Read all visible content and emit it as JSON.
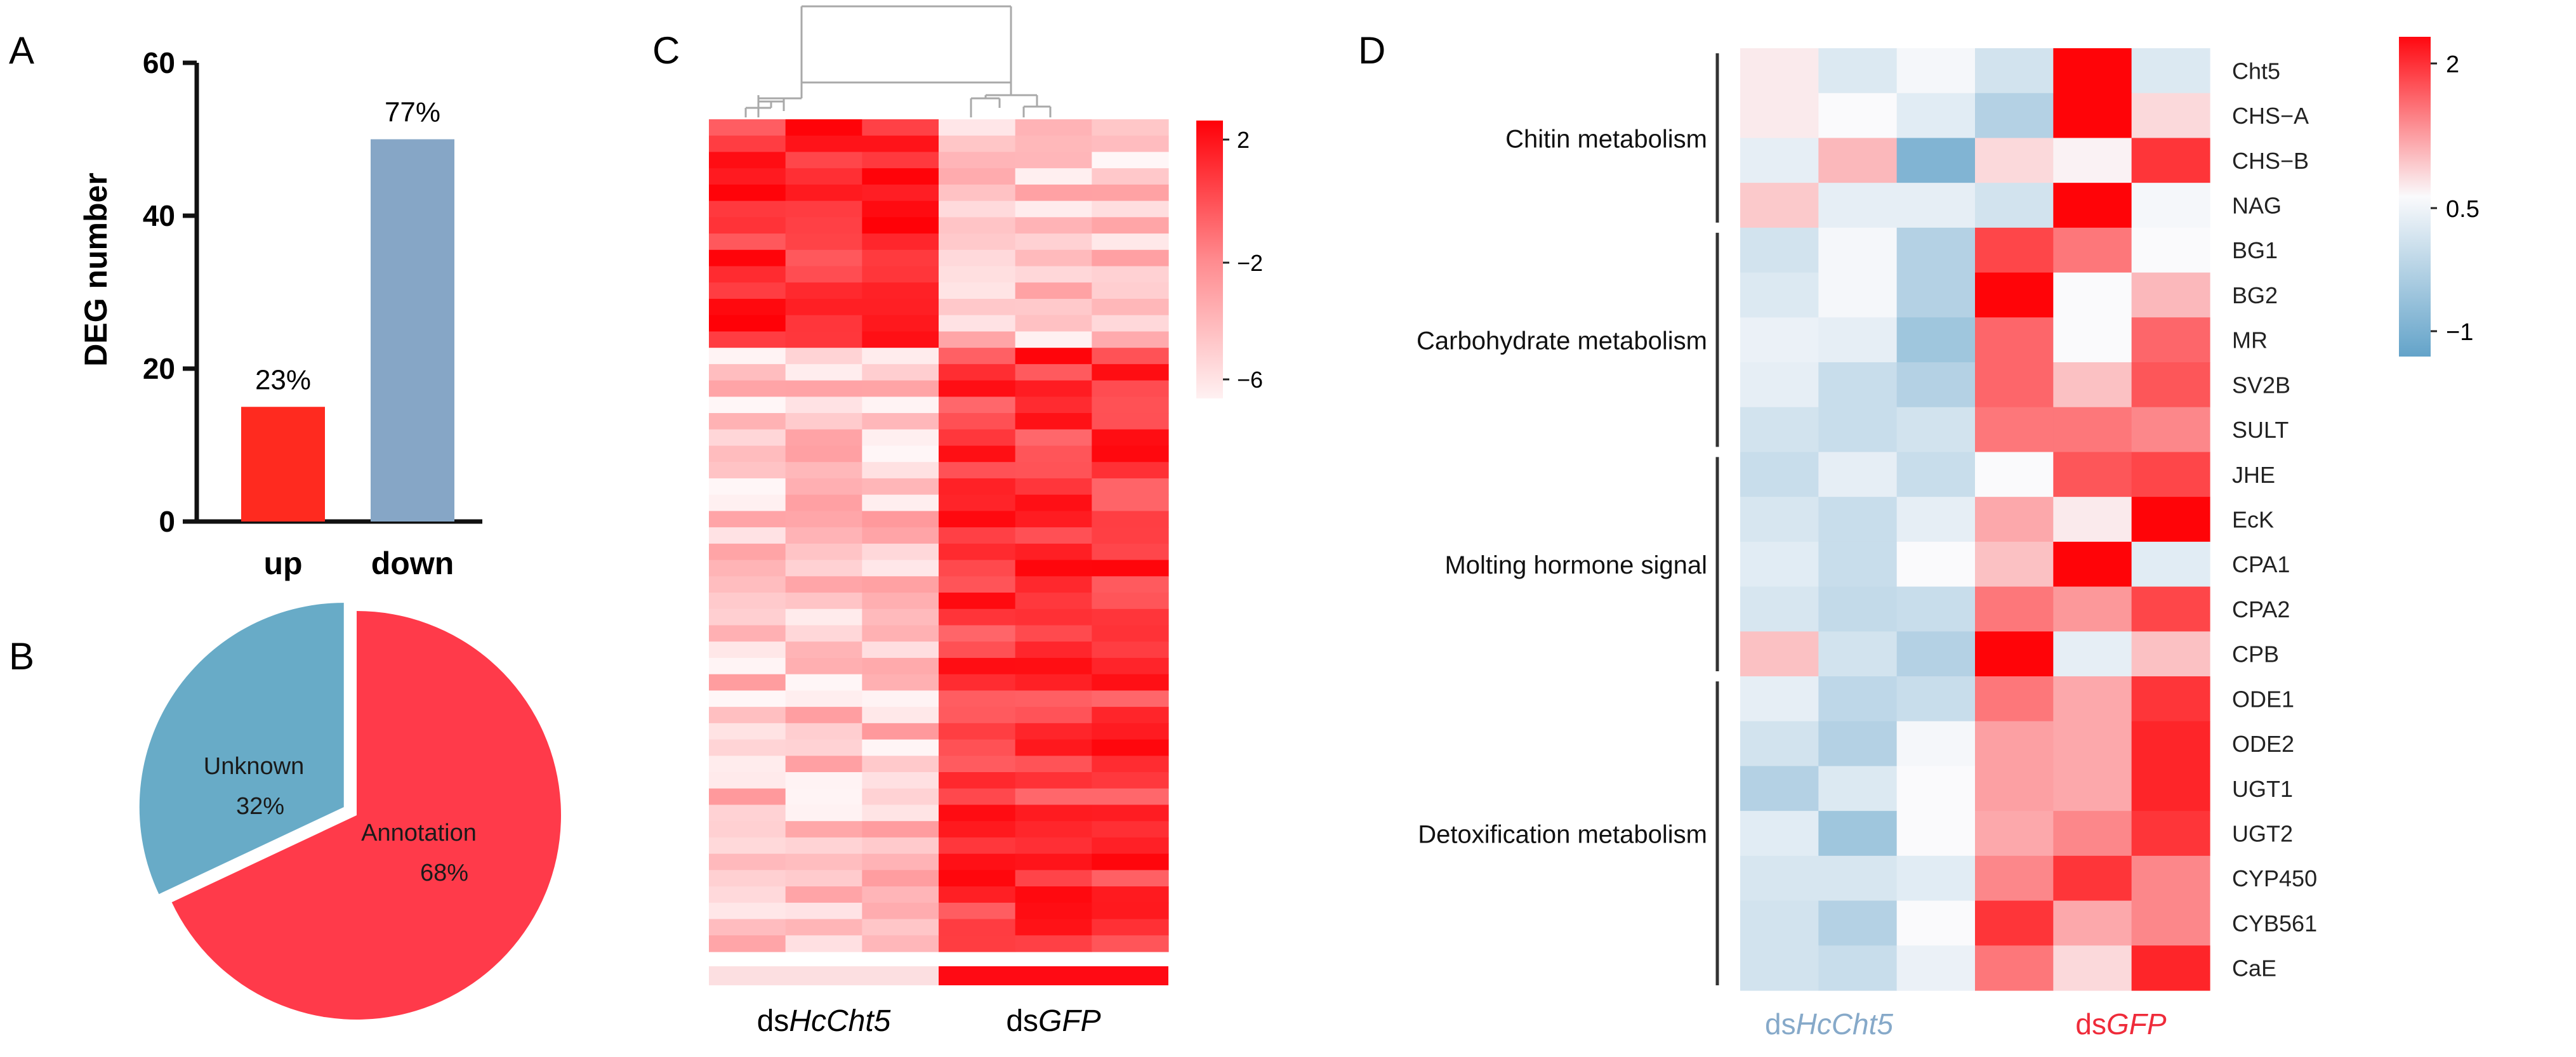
{
  "panels": [
    {
      "letter": "A"
    },
    {
      "letter": "B"
    },
    {
      "letter": "C"
    },
    {
      "letter": "D"
    }
  ],
  "chart_data": [
    {
      "id": "A",
      "type": "bar",
      "categories": [
        "up",
        "down"
      ],
      "values": [
        15,
        50
      ],
      "value_labels": [
        "23%",
        "77%"
      ],
      "colors": [
        "#ff2a1f",
        "#86a6c6"
      ],
      "xlabel": "",
      "ylabel": "DEG number",
      "ylim": [
        0,
        60
      ],
      "yticks": [
        0,
        20,
        40,
        60
      ]
    },
    {
      "id": "B",
      "type": "pie",
      "slices": [
        {
          "label": "Annotation",
          "pct_label": "68%",
          "value": 68,
          "color": "#ff3a4a"
        },
        {
          "label": "Unknown",
          "pct_label": "32%",
          "value": 32,
          "color": "#68abc7"
        }
      ]
    },
    {
      "id": "C",
      "type": "heatmap",
      "group_labels": [
        {
          "prefix": "ds",
          "name": "HcCht5",
          "bar_color": "#fcdfe1"
        },
        {
          "prefix": "ds",
          "name": "GFP",
          "bar_color": "#ff0a14"
        }
      ],
      "colorbar": {
        "ticks": [
          "2",
          "−2",
          "−6"
        ],
        "range": [
          -6,
          2
        ]
      },
      "n_rows": 51,
      "n_cols": 6
    },
    {
      "id": "D",
      "type": "heatmap",
      "genes": [
        "Cht5",
        "CHS−A",
        "CHS−B",
        "NAG",
        "BG1",
        "BG2",
        "MR",
        "SV2B",
        "SULT",
        "JHE",
        "EcK",
        "CPA1",
        "CPA2",
        "CPB",
        "ODE1",
        "ODE2",
        "UGT1",
        "UGT2",
        "CYP450",
        "CYB561",
        "CaE"
      ],
      "groups": [
        {
          "label": "Chitin metabolism",
          "start": 0,
          "end": 3
        },
        {
          "label": "Carbohydrate metabolism",
          "start": 4,
          "end": 8
        },
        {
          "label": "Molting hormone signal",
          "start": 9,
          "end": 13
        },
        {
          "label": "Detoxification metabolism",
          "start": 14,
          "end": 20
        }
      ],
      "group_labels": [
        {
          "prefix": "ds",
          "name": "HcCht5",
          "color": "#86a9c9"
        },
        {
          "prefix": "ds",
          "name": "GFP",
          "color": "#ef2b3a"
        }
      ],
      "colorbar": {
        "ticks": [
          "2",
          "0.5",
          "−1"
        ],
        "range": [
          -1,
          2
        ]
      },
      "values": [
        [
          0.6,
          0.2,
          0.45,
          0.1,
          2.0,
          0.2
        ],
        [
          0.6,
          0.5,
          0.25,
          -0.2,
          2.0,
          0.7
        ],
        [
          0.3,
          0.9,
          -0.7,
          0.7,
          0.55,
          1.7
        ],
        [
          0.8,
          0.3,
          0.3,
          0.1,
          2.0,
          0.45
        ],
        [
          0.1,
          0.45,
          -0.2,
          1.6,
          1.3,
          0.5
        ],
        [
          0.2,
          0.45,
          -0.2,
          2.0,
          0.5,
          0.9
        ],
        [
          0.35,
          0.3,
          -0.4,
          1.4,
          0.5,
          1.4
        ],
        [
          0.3,
          0.0,
          -0.2,
          1.4,
          0.85,
          1.5
        ],
        [
          0.1,
          0.0,
          0.1,
          1.3,
          1.3,
          1.2
        ],
        [
          0.0,
          0.3,
          0.0,
          0.5,
          1.5,
          1.6
        ],
        [
          0.15,
          0.0,
          0.3,
          1.0,
          0.6,
          2.0
        ],
        [
          0.25,
          0.0,
          0.5,
          0.85,
          2.0,
          0.25
        ],
        [
          0.15,
          -0.05,
          0.0,
          1.3,
          1.1,
          1.6
        ],
        [
          0.85,
          0.1,
          -0.2,
          2.0,
          0.3,
          0.85
        ],
        [
          0.3,
          -0.1,
          0.0,
          1.3,
          1.0,
          1.7
        ],
        [
          0.1,
          -0.2,
          0.45,
          1.05,
          1.0,
          1.8
        ],
        [
          -0.2,
          0.2,
          0.5,
          1.05,
          1.0,
          1.8
        ],
        [
          0.25,
          -0.4,
          0.5,
          1.0,
          1.2,
          1.7
        ],
        [
          0.15,
          0.15,
          0.25,
          1.2,
          1.7,
          1.2
        ],
        [
          0.1,
          -0.2,
          0.5,
          1.7,
          1.0,
          1.2
        ],
        [
          0.1,
          0.0,
          0.35,
          1.3,
          0.7,
          1.8
        ]
      ]
    }
  ]
}
